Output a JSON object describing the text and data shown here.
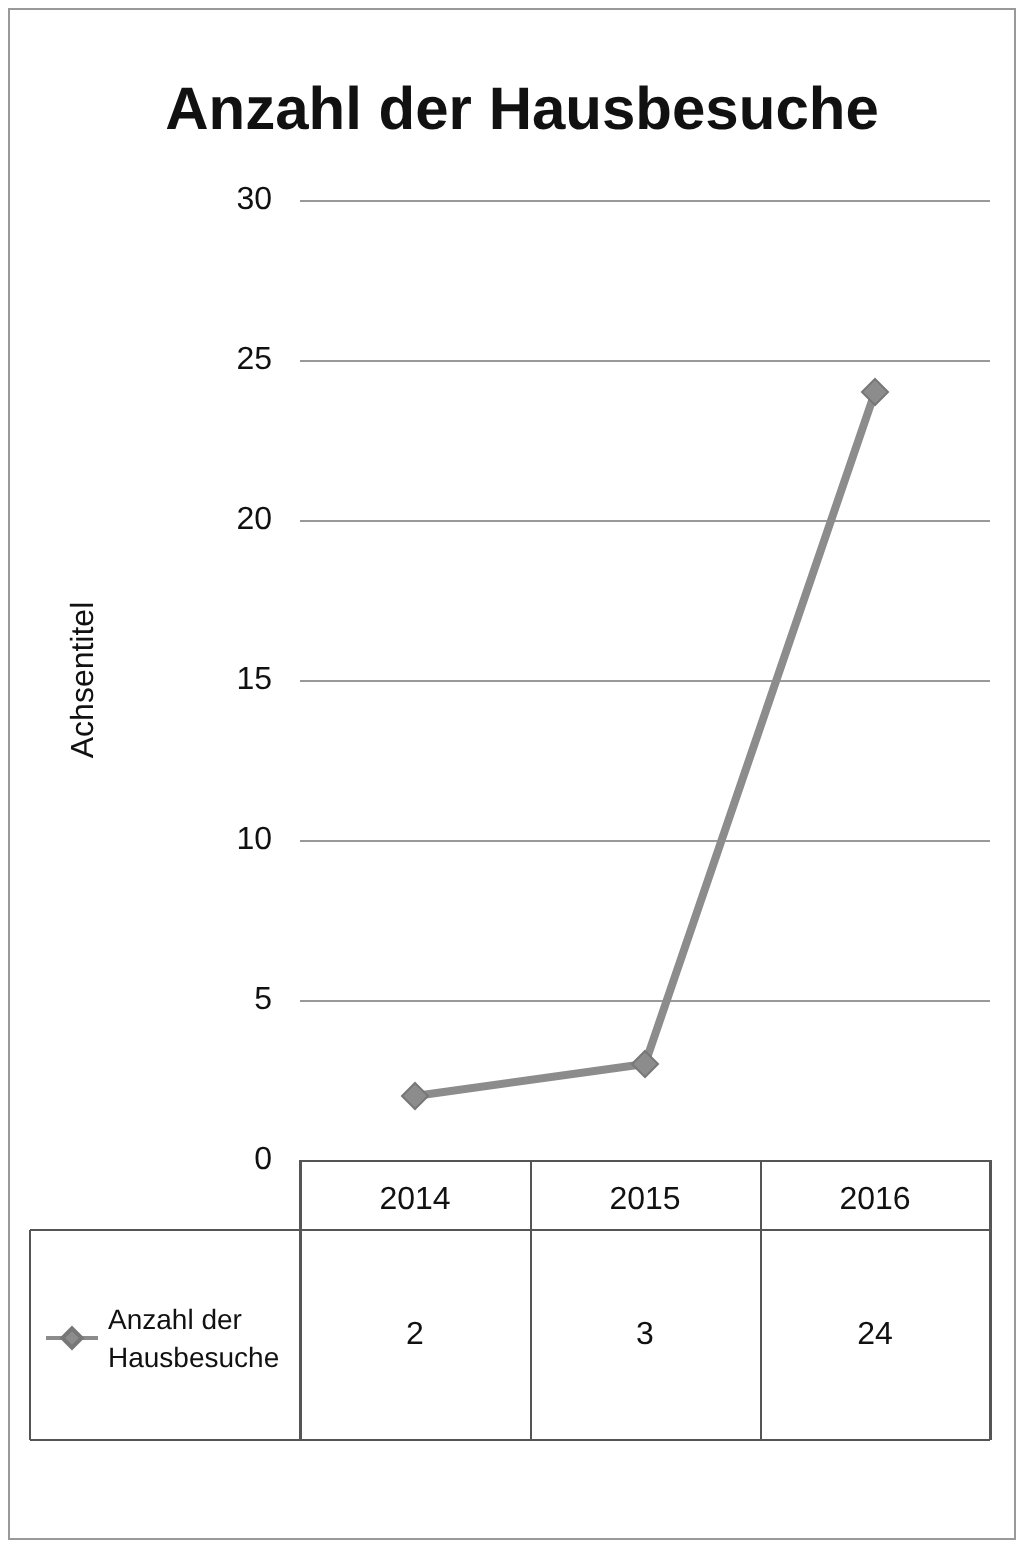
{
  "chart_data": {
    "type": "line",
    "title": "Anzahl der Hausbesuche",
    "ylabel": "Achsentitel",
    "categories": [
      "2014",
      "2015",
      "2016"
    ],
    "series": [
      {
        "name": "Anzahl der Hausbesuche",
        "color": "#8c8c8c",
        "values": [
          2,
          3,
          24
        ]
      }
    ],
    "ylim": [
      0,
      30
    ],
    "yticks": [
      0,
      5,
      10,
      15,
      20,
      25,
      30
    ],
    "grid": "y",
    "legend": "bottom left",
    "marker": "diamond",
    "data_labels": true
  }
}
